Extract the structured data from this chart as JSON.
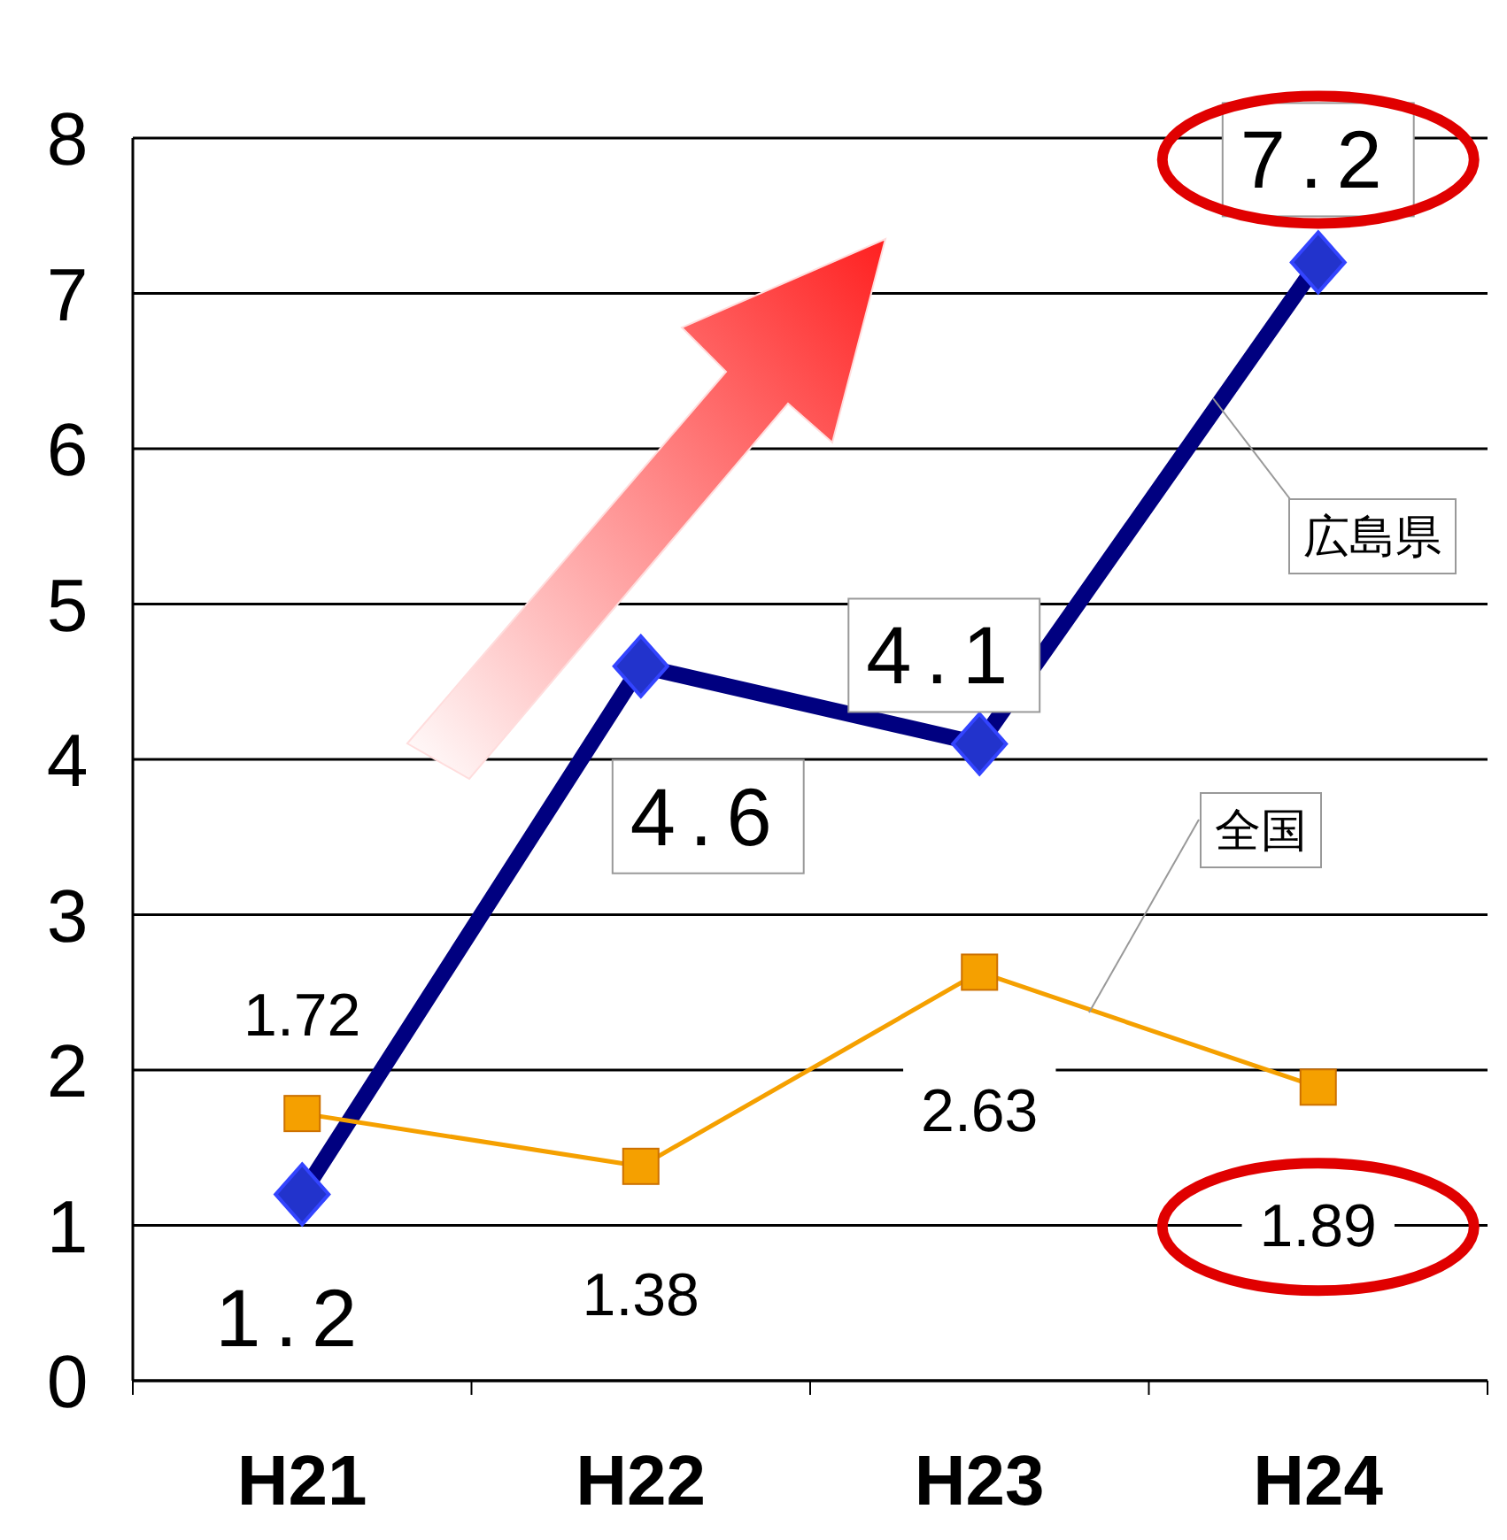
{
  "chart_data": {
    "type": "line",
    "categories": [
      "H21",
      "H22",
      "H23",
      "H24"
    ],
    "series": [
      {
        "name": "広島県",
        "color": "#000080",
        "marker": "diamond",
        "values": [
          1.2,
          4.6,
          4.1,
          7.2
        ]
      },
      {
        "name": "全国",
        "color": "#f5a000",
        "marker": "square",
        "values": [
          1.72,
          1.38,
          2.63,
          1.89
        ]
      }
    ],
    "data_labels": true,
    "ylim": [
      0,
      8
    ],
    "yticks": [
      0,
      1,
      2,
      3,
      4,
      5,
      6,
      7,
      8
    ],
    "grid": "y",
    "legend": false
  }
}
